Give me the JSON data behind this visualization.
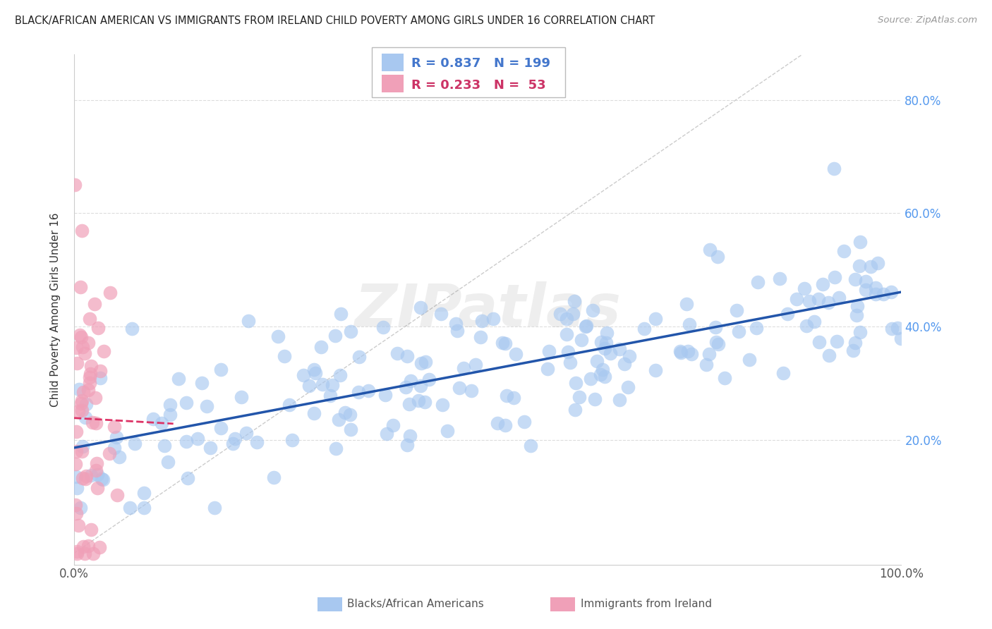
{
  "title": "BLACK/AFRICAN AMERICAN VS IMMIGRANTS FROM IRELAND CHILD POVERTY AMONG GIRLS UNDER 16 CORRELATION CHART",
  "source": "Source: ZipAtlas.com",
  "ylabel": "Child Poverty Among Girls Under 16",
  "watermark": "ZIPatlas",
  "blue_R": 0.837,
  "blue_N": 199,
  "pink_R": 0.233,
  "pink_N": 53,
  "blue_color": "#A8C8F0",
  "pink_color": "#F0A0B8",
  "blue_line_color": "#2255AA",
  "pink_line_color": "#DD3366",
  "legend1": "Blacks/African Americans",
  "legend2": "Immigrants from Ireland",
  "xlim": [
    0,
    1.0
  ],
  "ylim": [
    -0.02,
    0.88
  ],
  "ytick_vals": [
    0.2,
    0.4,
    0.6,
    0.8
  ],
  "ytick_labels": [
    "20.0%",
    "40.0%",
    "60.0%",
    "80.0%"
  ],
  "xtick_vals": [
    0.0,
    1.0
  ],
  "xtick_labels": [
    "0.0%",
    "100.0%"
  ],
  "blue_seed": 12,
  "pink_seed": 99,
  "diag_color": "#CCCCCC",
  "grid_color": "#DDDDDD"
}
